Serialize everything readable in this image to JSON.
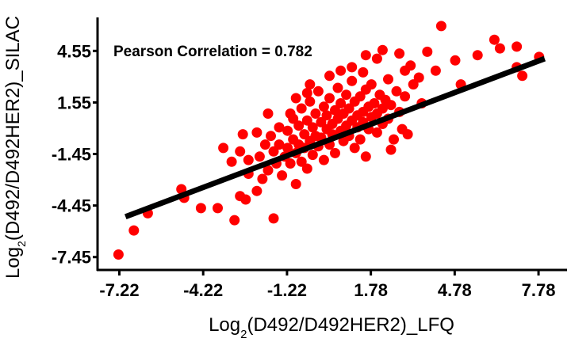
{
  "chart_data": {
    "type": "scatter",
    "title": "",
    "annotation": "Pearson Correlation = 0.782",
    "xlabel": {
      "prefix": "Log",
      "sub": "2",
      "rest": "(D492/D492HER2)_LFQ"
    },
    "ylabel": {
      "prefix": "Log",
      "sub": "2",
      "rest": "(D492/D492HER2)_SILAC"
    },
    "xlim": [
      -8.0,
      8.8
    ],
    "ylim": [
      -8.2,
      6.5
    ],
    "x_ticks": [
      -7.22,
      -4.22,
      -1.22,
      1.78,
      4.78,
      7.78
    ],
    "x_tick_labels": [
      "-7.22",
      "-4.22",
      "-1.22",
      "1.78",
      "4.78",
      "7.78"
    ],
    "y_ticks": [
      -7.45,
      -4.45,
      -1.45,
      1.55,
      4.55
    ],
    "y_tick_labels": [
      "-7.45",
      "-4.45",
      "-1.45",
      "1.55",
      "4.55"
    ],
    "grid": false,
    "point_color": "#ff0000",
    "line_color": "#000000",
    "regression_line": {
      "x": [
        -7.0,
        8.0
      ],
      "y": [
        -5.1,
        4.1
      ]
    },
    "points": [
      {
        "x": -7.25,
        "y": -7.3
      },
      {
        "x": -6.7,
        "y": -5.9
      },
      {
        "x": -6.2,
        "y": -4.9
      },
      {
        "x": -5.0,
        "y": -3.5
      },
      {
        "x": -4.9,
        "y": -4.0
      },
      {
        "x": -4.3,
        "y": -4.6
      },
      {
        "x": -3.7,
        "y": -4.6
      },
      {
        "x": -3.1,
        "y": -5.3
      },
      {
        "x": -2.9,
        "y": -3.9
      },
      {
        "x": -2.7,
        "y": -4.1
      },
      {
        "x": -2.3,
        "y": -3.6
      },
      {
        "x": -1.7,
        "y": -5.2
      },
      {
        "x": -3.5,
        "y": -1.1
      },
      {
        "x": -3.2,
        "y": -1.9
      },
      {
        "x": -2.9,
        "y": -1.3
      },
      {
        "x": -2.6,
        "y": -1.8
      },
      {
        "x": -2.6,
        "y": -2.6
      },
      {
        "x": -2.3,
        "y": -0.2
      },
      {
        "x": -2.2,
        "y": -1.6
      },
      {
        "x": -2.1,
        "y": -2.9
      },
      {
        "x": -2.0,
        "y": -0.9
      },
      {
        "x": -1.9,
        "y": -2.4
      },
      {
        "x": -1.8,
        "y": -0.4
      },
      {
        "x": -1.7,
        "y": -1.3
      },
      {
        "x": -1.6,
        "y": -2.0
      },
      {
        "x": -1.5,
        "y": 0.1
      },
      {
        "x": -1.5,
        "y": -0.9
      },
      {
        "x": -1.4,
        "y": -2.7
      },
      {
        "x": -1.3,
        "y": -1.6
      },
      {
        "x": -1.2,
        "y": -0.1
      },
      {
        "x": -1.2,
        "y": -1.1
      },
      {
        "x": -1.1,
        "y": -2.0
      },
      {
        "x": -1.0,
        "y": 0.6
      },
      {
        "x": -1.0,
        "y": -0.6
      },
      {
        "x": -0.9,
        "y": -1.4
      },
      {
        "x": -0.9,
        "y": -3.2
      },
      {
        "x": -0.8,
        "y": 0.2
      },
      {
        "x": -0.8,
        "y": -0.9
      },
      {
        "x": -0.7,
        "y": -1.9
      },
      {
        "x": -0.7,
        "y": 1.2
      },
      {
        "x": -0.6,
        "y": -0.3
      },
      {
        "x": -0.6,
        "y": -1.1
      },
      {
        "x": -0.5,
        "y": 0.5
      },
      {
        "x": -0.5,
        "y": -2.3
      },
      {
        "x": -0.4,
        "y": -0.7
      },
      {
        "x": -0.4,
        "y": 1.6
      },
      {
        "x": -0.3,
        "y": 0.1
      },
      {
        "x": -0.3,
        "y": -1.5
      },
      {
        "x": -0.2,
        "y": 0.9
      },
      {
        "x": -0.2,
        "y": -0.4
      },
      {
        "x": -0.1,
        "y": -1.0
      },
      {
        "x": -0.1,
        "y": 2.2
      },
      {
        "x": 0.0,
        "y": 0.4
      },
      {
        "x": 0.0,
        "y": -0.5
      },
      {
        "x": 0.1,
        "y": 1.3
      },
      {
        "x": 0.1,
        "y": -1.8
      },
      {
        "x": 0.2,
        "y": 0.0
      },
      {
        "x": 0.2,
        "y": 0.8
      },
      {
        "x": 0.3,
        "y": -0.9
      },
      {
        "x": 0.3,
        "y": 1.8
      },
      {
        "x": 0.4,
        "y": 0.3
      },
      {
        "x": 0.4,
        "y": -0.3
      },
      {
        "x": 0.5,
        "y": 1.1
      },
      {
        "x": 0.5,
        "y": -1.4
      },
      {
        "x": 0.6,
        "y": 0.6
      },
      {
        "x": 0.6,
        "y": 2.4
      },
      {
        "x": 0.7,
        "y": -0.1
      },
      {
        "x": 0.7,
        "y": 1.5
      },
      {
        "x": 0.8,
        "y": 0.9
      },
      {
        "x": 0.8,
        "y": -0.7
      },
      {
        "x": 0.9,
        "y": 0.2
      },
      {
        "x": 0.9,
        "y": 2.0
      },
      {
        "x": 1.0,
        "y": 1.2
      },
      {
        "x": 1.0,
        "y": -0.4
      },
      {
        "x": 1.1,
        "y": 0.5
      },
      {
        "x": 1.1,
        "y": 2.8
      },
      {
        "x": 1.2,
        "y": 1.6
      },
      {
        "x": 1.2,
        "y": -1.1
      },
      {
        "x": 1.3,
        "y": 0.8
      },
      {
        "x": 1.3,
        "y": 0.1
      },
      {
        "x": 1.4,
        "y": 1.9
      },
      {
        "x": 1.4,
        "y": -0.6
      },
      {
        "x": 1.5,
        "y": 1.0
      },
      {
        "x": 1.5,
        "y": 0.4
      },
      {
        "x": 1.6,
        "y": 2.3
      },
      {
        "x": 1.6,
        "y": -1.6
      },
      {
        "x": 1.7,
        "y": 1.3
      },
      {
        "x": 1.7,
        "y": 0.0
      },
      {
        "x": 1.8,
        "y": 0.7
      },
      {
        "x": 1.8,
        "y": 2.6
      },
      {
        "x": 1.9,
        "y": 1.5
      },
      {
        "x": 2.0,
        "y": -0.2
      },
      {
        "x": 2.0,
        "y": 0.9
      },
      {
        "x": 2.1,
        "y": 2.0
      },
      {
        "x": 2.2,
        "y": 1.2
      },
      {
        "x": 2.2,
        "y": 0.3
      },
      {
        "x": 2.3,
        "y": 1.7
      },
      {
        "x": 2.4,
        "y": 2.9
      },
      {
        "x": 2.4,
        "y": 0.6
      },
      {
        "x": 2.5,
        "y": 1.4
      },
      {
        "x": 2.6,
        "y": -0.6
      },
      {
        "x": 2.7,
        "y": 2.2
      },
      {
        "x": 2.8,
        "y": 1.0
      },
      {
        "x": 2.9,
        "y": 0.0
      },
      {
        "x": 3.0,
        "y": 1.9
      },
      {
        "x": 3.1,
        "y": -0.3
      },
      {
        "x": 3.3,
        "y": 2.6
      },
      {
        "x": 3.5,
        "y": 3.0
      },
      {
        "x": -1.1,
        "y": 0.9
      },
      {
        "x": -0.9,
        "y": 1.8
      },
      {
        "x": -0.4,
        "y": 2.6
      },
      {
        "x": 0.3,
        "y": 3.1
      },
      {
        "x": 0.7,
        "y": 3.4
      },
      {
        "x": 1.1,
        "y": 3.6
      },
      {
        "x": 1.5,
        "y": 3.3
      },
      {
        "x": 2.0,
        "y": 4.1
      },
      {
        "x": 2.2,
        "y": 4.6
      },
      {
        "x": 2.8,
        "y": 4.4
      },
      {
        "x": 3.2,
        "y": 3.7
      },
      {
        "x": 3.8,
        "y": 4.5
      },
      {
        "x": 4.1,
        "y": 3.4
      },
      {
        "x": 4.3,
        "y": 6.0
      },
      {
        "x": 4.8,
        "y": 4.0
      },
      {
        "x": 5.0,
        "y": 2.6
      },
      {
        "x": 5.6,
        "y": 4.3
      },
      {
        "x": 6.2,
        "y": 5.2
      },
      {
        "x": 6.4,
        "y": 4.7
      },
      {
        "x": 7.0,
        "y": 3.6
      },
      {
        "x": 7.2,
        "y": 3.1
      },
      {
        "x": 7.0,
        "y": 4.8
      },
      {
        "x": 7.8,
        "y": 4.2
      },
      {
        "x": -0.5,
        "y": 2.1
      },
      {
        "x": -2.8,
        "y": -0.3
      },
      {
        "x": -1.9,
        "y": 0.9
      },
      {
        "x": 2.5,
        "y": -1.2
      },
      {
        "x": 3.6,
        "y": 1.5
      },
      {
        "x": 3.0,
        "y": 3.4
      },
      {
        "x": 1.6,
        "y": 4.3
      }
    ]
  }
}
